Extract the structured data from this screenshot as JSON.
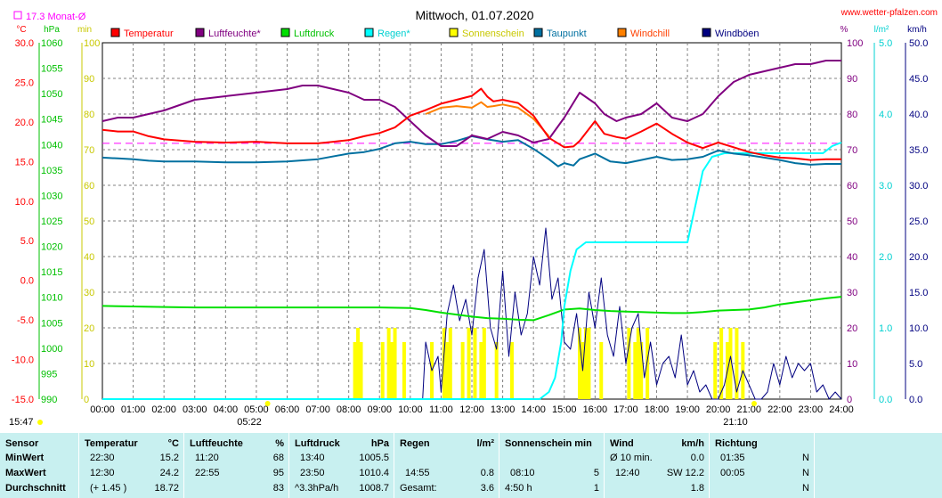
{
  "title": "Mittwoch, 01.07.2020",
  "site": "www.wetter-pfalzen.com",
  "monthly_avg_label": "17.3 Monat-Ø",
  "time_now": "15:47",
  "sunrise": "05:22",
  "sunset": "21:10",
  "units": {
    "temp": "°C",
    "pressure": "hPa",
    "min": "min",
    "percent": "%",
    "rain": "l/m²",
    "wind": "km/h"
  },
  "axes": {
    "temp_ticks": [
      "30.0",
      "25.0",
      "20.0",
      "15.0",
      "10.0",
      "5.0",
      "0.0",
      "-5.0",
      "-10.0",
      "-15.0"
    ],
    "pressure_ticks": [
      "1060",
      "1055",
      "1050",
      "1045",
      "1040",
      "1035",
      "1030",
      "1025",
      "1020",
      "1015",
      "1010",
      "1005",
      "1000",
      "995",
      "990"
    ],
    "minute_ticks": [
      "100",
      "90",
      "80",
      "70",
      "60",
      "50",
      "40",
      "30",
      "20",
      "10",
      "0"
    ],
    "percent_ticks": [
      "100",
      "90",
      "80",
      "70",
      "60",
      "50",
      "40",
      "30",
      "20",
      "10",
      "0"
    ],
    "rain_ticks": [
      "5.0",
      "4.0",
      "3.0",
      "2.0",
      "1.0",
      "0.0"
    ],
    "wind_ticks": [
      "50.0",
      "45.0",
      "40.0",
      "35.0",
      "30.0",
      "25.0",
      "20.0",
      "15.0",
      "10.0",
      "5.0",
      "0.0"
    ],
    "time_ticks": [
      "00:00",
      "01:00",
      "02:00",
      "03:00",
      "04:00",
      "05:00",
      "06:00",
      "07:00",
      "08:00",
      "09:00",
      "10:00",
      "11:00",
      "12:00",
      "13:00",
      "14:00",
      "15:00",
      "16:00",
      "17:00",
      "18:00",
      "19:00",
      "20:00",
      "21:00",
      "22:00",
      "23:00",
      "24:00"
    ]
  },
  "colors": {
    "temperature": "#ff0000",
    "humidity": "#800080",
    "pressure": "#00e000",
    "rain": "#00ffff",
    "sunshine": "#ffff00",
    "dewpoint": "#0070a0",
    "windchill": "#ff8000",
    "gusts": "#000080",
    "monthavg": "#ff00ff",
    "grid": "#808080"
  },
  "chart_data": {
    "type": "line",
    "title": "Mittwoch, 01.07.2020",
    "x_unit": "hours",
    "xlim": [
      0,
      24
    ],
    "series": [
      {
        "name": "Temperatur",
        "axis": "temp",
        "ylim": [
          -15,
          30
        ],
        "x": [
          0,
          0.5,
          1,
          1.5,
          2,
          3,
          4,
          5,
          6,
          7,
          7.5,
          8,
          8.5,
          9,
          9.5,
          10,
          10.5,
          11,
          11.5,
          12,
          12.3,
          12.5,
          12.7,
          13,
          13.5,
          14,
          14.5,
          15,
          15.3,
          15.5,
          16,
          16.3,
          16.7,
          17,
          17.5,
          18,
          18.5,
          19,
          19.5,
          20,
          20.5,
          21,
          21.5,
          22,
          22.5,
          23,
          23.5,
          24
        ],
        "y": [
          19.0,
          18.8,
          18.8,
          18.2,
          17.8,
          17.5,
          17.4,
          17.5,
          17.3,
          17.3,
          17.5,
          17.7,
          18.2,
          18.6,
          19.3,
          20.8,
          21.5,
          22.3,
          22.8,
          23.3,
          24.2,
          23.2,
          22.6,
          22.8,
          22.4,
          20.8,
          18.0,
          16.8,
          16.9,
          17.6,
          20.1,
          18.5,
          18.1,
          17.9,
          18.8,
          19.8,
          18.5,
          17.4,
          16.7,
          17.4,
          16.8,
          16.2,
          15.8,
          15.5,
          15.4,
          15.2,
          15.3,
          15.3
        ]
      },
      {
        "name": "Luftfeuchte*",
        "axis": "percent",
        "ylim": [
          0,
          100
        ],
        "x": [
          0,
          0.5,
          1,
          1.5,
          2,
          3,
          4,
          5,
          6,
          6.5,
          7,
          7.5,
          8,
          8.5,
          9,
          9.5,
          10,
          10.5,
          11,
          11.5,
          12,
          12.5,
          13,
          13.5,
          14,
          14.5,
          15,
          15.5,
          16,
          16.3,
          16.7,
          17,
          17.5,
          18,
          18.5,
          19,
          19.5,
          20,
          20.5,
          21,
          21.5,
          22,
          22.5,
          23,
          23.5,
          24
        ],
        "y": [
          78,
          79,
          79,
          80,
          81,
          84,
          85,
          86,
          87,
          88,
          88,
          87,
          86,
          84,
          84,
          82,
          78,
          74,
          71,
          71,
          74,
          73,
          75,
          74,
          72,
          73,
          79,
          86,
          83,
          80,
          78,
          79,
          80,
          83,
          79,
          78,
          80,
          85,
          89,
          91,
          92,
          93,
          94,
          94,
          95,
          95
        ]
      },
      {
        "name": "Luftdruck",
        "axis": "pressure",
        "ylim": [
          990,
          1060
        ],
        "x": [
          0,
          1,
          2,
          3,
          4,
          5,
          6,
          7,
          8,
          9,
          10,
          10.5,
          11,
          11.5,
          12,
          12.5,
          13,
          13.5,
          14,
          14.5,
          15,
          15.5,
          16,
          16.5,
          17,
          17.5,
          18,
          18.5,
          19,
          19.5,
          20,
          20.5,
          21,
          21.5,
          22,
          22.5,
          23,
          23.5,
          24
        ],
        "y": [
          1008.3,
          1008.2,
          1008.1,
          1008.0,
          1008.0,
          1008.0,
          1008.0,
          1008.0,
          1008.0,
          1008.0,
          1007.9,
          1007.5,
          1007.0,
          1006.6,
          1006.2,
          1005.9,
          1005.8,
          1005.6,
          1005.5,
          1006.5,
          1007.6,
          1007.8,
          1007.5,
          1007.3,
          1007.2,
          1007.1,
          1007.0,
          1006.9,
          1006.9,
          1007.1,
          1007.4,
          1007.5,
          1007.6,
          1008.0,
          1008.6,
          1009.0,
          1009.4,
          1009.8,
          1010.1
        ]
      },
      {
        "name": "Regen*",
        "axis": "rain",
        "ylim": [
          0,
          5
        ],
        "x": [
          0,
          14.2,
          14.5,
          14.7,
          14.9,
          15.0,
          15.2,
          15.4,
          15.7,
          16,
          17,
          18,
          19,
          19.1,
          19.3,
          19.5,
          19.8,
          20.2,
          20.7,
          21,
          22,
          22.6,
          23,
          23.4,
          23.7,
          24
        ],
        "y": [
          0,
          0,
          0.1,
          0.3,
          0.8,
          1.3,
          1.8,
          2.1,
          2.2,
          2.2,
          2.2,
          2.2,
          2.2,
          2.4,
          2.8,
          3.2,
          3.4,
          3.45,
          3.45,
          3.45,
          3.45,
          3.45,
          3.45,
          3.45,
          3.55,
          3.6
        ]
      },
      {
        "name": "Taupunkt",
        "axis": "temp",
        "ylim": [
          -15,
          30
        ],
        "x": [
          0,
          0.5,
          1,
          1.5,
          2,
          3,
          4,
          5,
          6,
          7,
          8,
          8.5,
          9,
          9.5,
          10,
          10.5,
          11,
          11.5,
          12,
          12.5,
          13,
          13.5,
          14,
          14.5,
          14.8,
          15,
          15.3,
          15.5,
          16,
          16.5,
          17,
          17.5,
          18,
          18.5,
          19,
          19.5,
          20,
          20.5,
          21,
          21.5,
          22,
          22.5,
          23,
          23.5,
          24
        ],
        "y": [
          15.5,
          15.4,
          15.3,
          15.1,
          15.0,
          15.0,
          14.9,
          14.9,
          15.0,
          15.3,
          16.0,
          16.2,
          16.6,
          17.3,
          17.5,
          17.2,
          17.2,
          17.6,
          18.2,
          17.8,
          17.5,
          17.7,
          16.6,
          15.3,
          14.4,
          14.8,
          14.5,
          15.3,
          16.0,
          15.0,
          14.8,
          15.2,
          15.6,
          15.2,
          15.3,
          15.6,
          16.4,
          16.0,
          15.8,
          15.5,
          15.2,
          14.8,
          14.6,
          14.7,
          14.7
        ]
      },
      {
        "name": "Windchill",
        "axis": "temp",
        "ylim": [
          -15,
          30
        ],
        "x": [
          10.5,
          11,
          11.5,
          12,
          12.3,
          12.5,
          12.7,
          13,
          13.5,
          14,
          14.5
        ],
        "y": [
          21.0,
          21.8,
          22.0,
          21.8,
          22.5,
          21.9,
          22.0,
          22.2,
          21.8,
          20.4,
          18.2
        ]
      },
      {
        "name": "Windböen",
        "axis": "wind",
        "ylim": [
          0,
          50
        ],
        "x": [
          10.4,
          10.5,
          10.7,
          10.9,
          11.0,
          11.2,
          11.4,
          11.6,
          11.8,
          12.0,
          12.2,
          12.4,
          12.6,
          12.8,
          13.0,
          13.2,
          13.4,
          13.6,
          13.8,
          14.0,
          14.2,
          14.4,
          14.6,
          14.8,
          15.0,
          15.2,
          15.4,
          15.6,
          15.8,
          16.0,
          16.2,
          16.4,
          16.6,
          16.8,
          17.0,
          17.2,
          17.4,
          17.6,
          17.8,
          18.0,
          18.2,
          18.4,
          18.6,
          18.8,
          19.0,
          19.2,
          19.4,
          19.6,
          19.8,
          20.0,
          20.2,
          20.4,
          20.6,
          20.8,
          21.0,
          21.2,
          21.4,
          21.6,
          21.8,
          22.0,
          22.2,
          22.4,
          22.6,
          22.8,
          23.0,
          23.2,
          23.4,
          23.6,
          23.8,
          24.0
        ],
        "y": [
          0,
          8,
          4,
          6,
          1,
          12,
          16,
          11,
          14,
          9,
          17,
          21,
          10,
          7,
          18,
          6,
          15,
          9,
          12,
          20,
          16,
          24,
          14,
          17,
          8,
          7,
          12,
          4,
          15,
          10,
          17,
          9,
          6,
          13,
          5,
          10,
          12,
          3,
          8,
          2,
          5,
          6,
          3,
          9,
          2,
          4,
          1,
          2,
          0,
          0,
          2,
          6,
          1,
          4,
          2,
          0,
          0,
          1,
          5,
          2,
          6,
          3,
          5,
          4,
          5,
          1,
          2,
          0,
          1,
          0
        ]
      }
    ],
    "sunshine_minutes": {
      "x_hours": [
        8.2,
        8.3,
        8.4,
        9.1,
        9.3,
        9.4,
        9.5,
        9.8,
        10.7,
        11.1,
        11.2,
        11.3,
        11.7,
        11.9,
        12.1,
        12.3,
        12.4,
        12.8,
        13.3,
        15.5,
        15.6,
        15.7,
        15.8,
        16.2,
        17.1,
        17.3,
        17.4,
        17.5,
        17.7,
        19.9,
        20.1,
        20.3,
        20.4,
        20.6,
        20.8
      ],
      "y": [
        4,
        5,
        4,
        4,
        5,
        4,
        5,
        4,
        4,
        5,
        4,
        5,
        4,
        5,
        5,
        4,
        5,
        4,
        4,
        5,
        4,
        5,
        5,
        4,
        5,
        4,
        5,
        4,
        5,
        4,
        5,
        4,
        5,
        5,
        4
      ]
    },
    "month_average": 17.3
  },
  "legend": [
    {
      "label": "Temperatur",
      "color": "#ff0000",
      "text_color": "#ff0000"
    },
    {
      "label": "Luftfeuchte*",
      "color": "#800080",
      "text_color": "#800080"
    },
    {
      "label": "Luftdruck",
      "color": "#00e000",
      "text_color": "#00c000"
    },
    {
      "label": "Regen*",
      "color": "#00ffff",
      "text_color": "#00d0d0"
    },
    {
      "label": "Sonnenschein",
      "color": "#ffff00",
      "text_color": "#c8c800"
    },
    {
      "label": "Taupunkt",
      "color": "#0070a0",
      "text_color": "#0070a0"
    },
    {
      "label": "Windchill",
      "color": "#ff8000",
      "text_color": "#ff4000"
    },
    {
      "label": "Windböen",
      "color": "#000080",
      "text_color": "#000080"
    }
  ],
  "stats": {
    "sensor": {
      "head": "Sensor",
      "min": "MinWert",
      "max": "MaxWert",
      "avg": "Durchschnitt"
    },
    "temperature": {
      "head": "Temperatur",
      "unit": "°C",
      "min_time": "22:30",
      "min": "15.2",
      "max_time": "12:30",
      "max": "24.2",
      "avg_note": "(+ 1.45 )",
      "avg": "18.72"
    },
    "humidity": {
      "head": "Luftfeuchte",
      "unit": "%",
      "min_time": "11:20",
      "min": "68",
      "max_time": "22:55",
      "max": "95",
      "avg": "83"
    },
    "pressure": {
      "head": "Luftdruck",
      "unit": "hPa",
      "min_time": "13:40",
      "min": "1005.5",
      "max_time": "23:50",
      "max": "1010.4",
      "avg_note": "^3.3hPa/h",
      "avg": "1008.7"
    },
    "rain": {
      "head": "Regen",
      "unit": "l/m²",
      "max_time": "14:55",
      "max": "0.8",
      "avg_note": "Gesamt:",
      "avg": "3.6"
    },
    "sunshine": {
      "head": "Sonnenschein min",
      "max_time": "08:10",
      "max": "5",
      "avg_note": "4:50 h",
      "avg": "1"
    },
    "wind": {
      "head": "Wind",
      "unit": "km/h",
      "min_label": "Ø 10 min.",
      "min": "0.0",
      "max_time": "12:40",
      "max": "SW 12.2",
      "avg": "1.8"
    },
    "direction": {
      "head": "Richtung",
      "min_time": "01:35",
      "min": "N",
      "max_time": "00:05",
      "max": "N",
      "avg": "N"
    }
  }
}
